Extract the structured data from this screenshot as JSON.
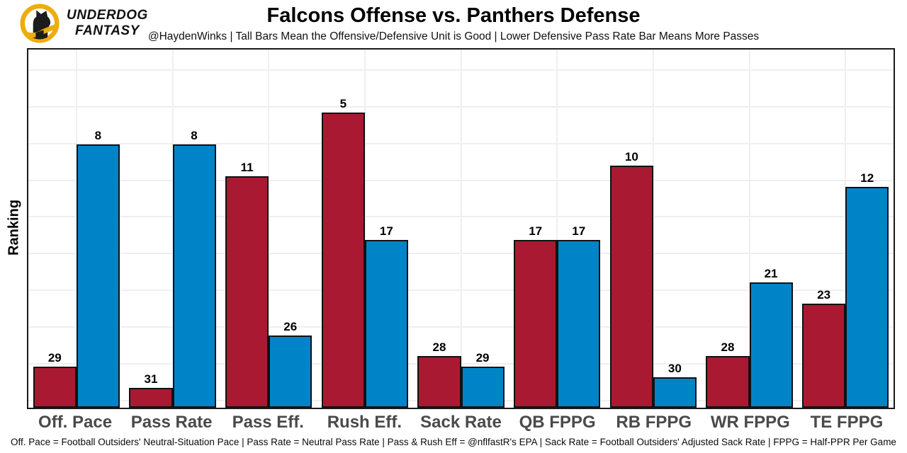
{
  "header": {
    "logo_line1": "UNDERDOG",
    "logo_line2": "FANTASY",
    "title": "Falcons Offense vs. Panthers Defense",
    "subtitle": "@HaydenWinks | Tall Bars Mean the Offensive/Defensive Unit is Good | Lower Defensive Pass Rate Bar Means More Passes"
  },
  "chart_data": {
    "type": "bar",
    "title": "Falcons Offense vs. Panthers Defense",
    "ylabel": "Ranking",
    "categories": [
      "Off. Pace",
      "Pass Rate",
      "Pass Eff.",
      "Rush Eff.",
      "Sack Rate",
      "QB FPPG",
      "RB FPPG",
      "WR FPPG",
      "TE FPPG"
    ],
    "series": [
      {
        "name": "Falcons Offense",
        "color": "#A91A32",
        "values": [
          29,
          31,
          11,
          5,
          28,
          17,
          10,
          28,
          23
        ]
      },
      {
        "name": "Panthers Defense",
        "color": "#0084C8",
        "values": [
          8,
          8,
          26,
          17,
          29,
          17,
          30,
          21,
          12
        ]
      }
    ],
    "value_labels_shown": true,
    "legend_position": "none",
    "grid": true,
    "bar_height_rule": "rank 1 is best; bar height is proportional to (33 - rank), so lower rank numbers draw taller bars"
  },
  "colors": {
    "offense_red": "#A91A32",
    "defense_blue": "#0084C8",
    "brand_gold": "#EDAD0B",
    "gridline": "#efefef",
    "axis_label_gray": "#4a4a4a"
  },
  "footer": {
    "text": "Off. Pace = Football Outsiders' Neutral-Situation Pace | Pass Rate = Neutral Pass Rate | Pass & Rush Eff = @nflfastR's EPA | Sack Rate = Football Outsiders' Adjusted Sack Rate | FPPG = Half-PPR Per Game"
  }
}
